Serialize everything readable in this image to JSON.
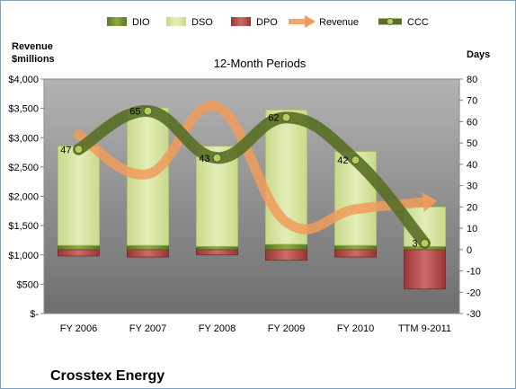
{
  "company_name": "Crosstex Energy",
  "chart_data": {
    "type": "bar",
    "title": "12-Month Periods",
    "ylabel_left": "Revenue\n$millions",
    "ylabel_right": "Days",
    "categories": [
      "FY 2006",
      "FY 2007",
      "FY 2008",
      "FY 2009",
      "FY 2010",
      "TTM 9-2011"
    ],
    "left_axis": {
      "ylim": [
        0,
        4000
      ],
      "ticks": [
        0,
        500,
        1000,
        1500,
        2000,
        2500,
        3000,
        3500,
        4000
      ],
      "tick_labels": [
        "$-",
        "$500",
        "$1,000",
        "$1,500",
        "$2,000",
        "$2,500",
        "$3,000",
        "$3,500",
        "$4,000"
      ]
    },
    "right_axis": {
      "ylim": [
        -30,
        80
      ],
      "ticks": [
        -30,
        -20,
        -10,
        0,
        10,
        20,
        30,
        40,
        50,
        60,
        70,
        80
      ],
      "tick_labels": [
        "-30",
        "-20",
        "-10",
        "0",
        "10",
        "20",
        "30",
        "40",
        "50",
        "60",
        "70",
        "80"
      ]
    },
    "legend": {
      "placement": "top",
      "entries": [
        "DIO",
        "DSO",
        "DPO",
        "Revenue",
        "CCC"
      ]
    },
    "grid": false,
    "series": [
      {
        "name": "DIO",
        "type": "stacked-bar",
        "axis": "right",
        "values": [
          2,
          2,
          1.5,
          2.5,
          2,
          1.5
        ]
      },
      {
        "name": "DSO",
        "type": "stacked-bar",
        "axis": "right",
        "values": [
          46.5,
          64.5,
          47,
          63,
          44,
          18.5
        ]
      },
      {
        "name": "DPO",
        "type": "bar-negative",
        "axis": "right",
        "values": [
          -3,
          -3.5,
          -2.5,
          -5,
          -3.5,
          -18.5
        ]
      },
      {
        "name": "Revenue",
        "type": "line",
        "axis": "left",
        "values": [
          3050,
          2380,
          3530,
          1560,
          1780,
          1900
        ]
      },
      {
        "name": "CCC",
        "type": "line",
        "axis": "right",
        "values": [
          47,
          65,
          43,
          62,
          42,
          3
        ],
        "labels": [
          "47",
          "65",
          "43",
          "62",
          "42",
          "3"
        ]
      }
    ],
    "colors": {
      "DIO": "#6e8b2a",
      "DSO": "#d7e4a0",
      "DPO": "#b94b4b",
      "Revenue": "#f09c5a",
      "CCC": "#5a7028",
      "plot_area": "#8c8c8c"
    }
  }
}
